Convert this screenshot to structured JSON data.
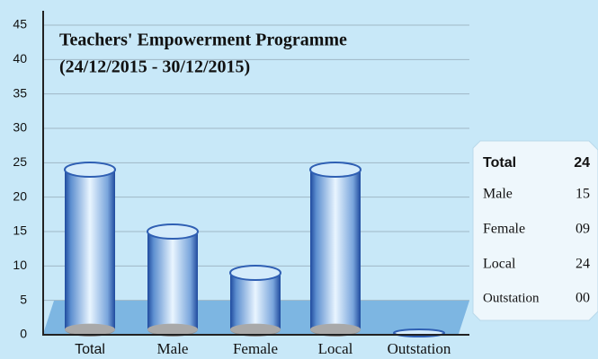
{
  "chart_data": {
    "type": "bar",
    "title": "Teachers' Empowerment Programme",
    "subtitle": "(24/12/2015 - 30/12/2015)",
    "categories": [
      "Total",
      "Male",
      "Female",
      "Local",
      "Outstation"
    ],
    "values": [
      24,
      15,
      9,
      24,
      0
    ],
    "value_labels": [
      "24",
      "15",
      "09",
      "24",
      "00"
    ],
    "color": "#2f5fb3",
    "ylim": [
      0,
      45
    ],
    "yticks": [
      0,
      5,
      10,
      15,
      20,
      25,
      30,
      35,
      40,
      45
    ],
    "grid": true
  }
}
